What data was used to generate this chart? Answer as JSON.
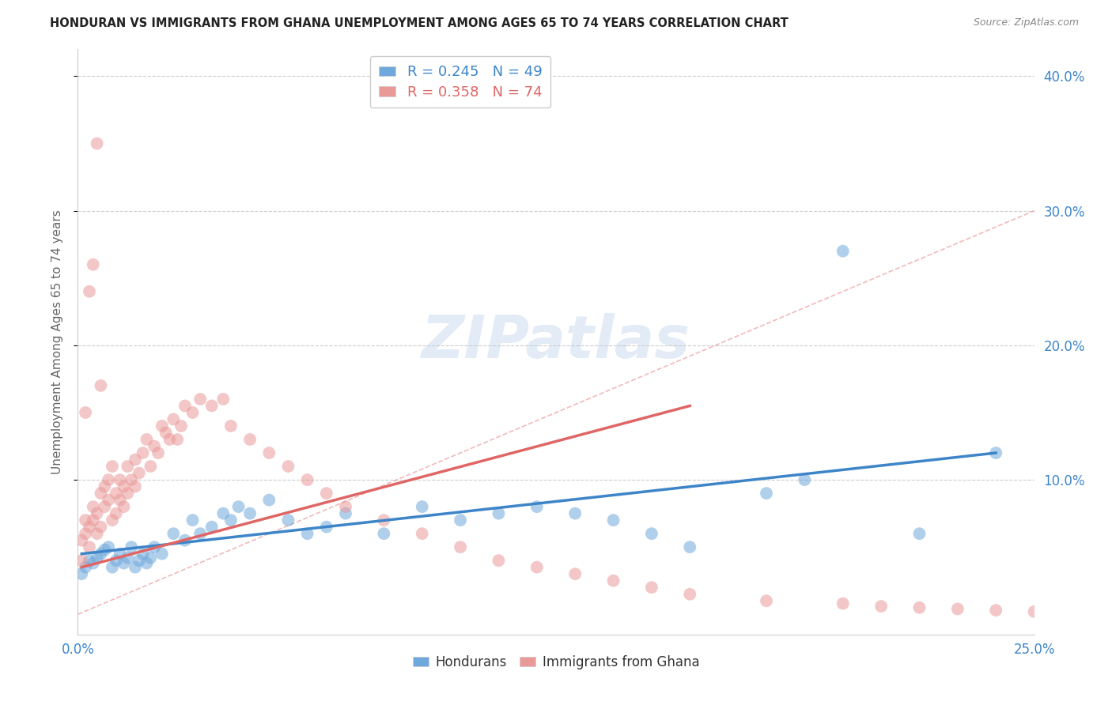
{
  "title": "HONDURAN VS IMMIGRANTS FROM GHANA UNEMPLOYMENT AMONG AGES 65 TO 74 YEARS CORRELATION CHART",
  "source": "Source: ZipAtlas.com",
  "ylabel": "Unemployment Among Ages 65 to 74 years",
  "xlim": [
    0.0,
    0.25
  ],
  "ylim": [
    -0.015,
    0.42
  ],
  "honduran_R": 0.245,
  "honduran_N": 49,
  "ghana_R": 0.358,
  "ghana_N": 74,
  "honduran_color": "#6fa8dc",
  "ghana_color": "#ea9999",
  "honduran_line_color": "#3d85c8",
  "ghana_line_color": "#e06666",
  "ref_line_color": "#e06666",
  "background_color": "#ffffff",
  "title_color": "#222222",
  "axis_label_color": "#3d85c8",
  "grid_color": "#cccccc",
  "ytick_vals": [
    0.1,
    0.2,
    0.3,
    0.4
  ],
  "honduran_scatter_x": [
    0.001,
    0.002,
    0.003,
    0.004,
    0.005,
    0.006,
    0.007,
    0.008,
    0.009,
    0.01,
    0.011,
    0.012,
    0.013,
    0.014,
    0.015,
    0.016,
    0.017,
    0.018,
    0.019,
    0.02,
    0.022,
    0.025,
    0.028,
    0.03,
    0.032,
    0.035,
    0.038,
    0.04,
    0.042,
    0.045,
    0.05,
    0.055,
    0.06,
    0.065,
    0.07,
    0.08,
    0.09,
    0.1,
    0.11,
    0.12,
    0.13,
    0.14,
    0.15,
    0.16,
    0.18,
    0.19,
    0.2,
    0.22,
    0.24
  ],
  "honduran_scatter_y": [
    0.03,
    0.035,
    0.04,
    0.038,
    0.042,
    0.045,
    0.048,
    0.05,
    0.035,
    0.04,
    0.045,
    0.038,
    0.042,
    0.05,
    0.035,
    0.04,
    0.045,
    0.038,
    0.042,
    0.05,
    0.045,
    0.06,
    0.055,
    0.07,
    0.06,
    0.065,
    0.075,
    0.07,
    0.08,
    0.075,
    0.085,
    0.07,
    0.06,
    0.065,
    0.075,
    0.06,
    0.08,
    0.07,
    0.075,
    0.08,
    0.075,
    0.07,
    0.06,
    0.05,
    0.09,
    0.1,
    0.27,
    0.06,
    0.12
  ],
  "ghana_scatter_x": [
    0.001,
    0.001,
    0.002,
    0.002,
    0.003,
    0.003,
    0.004,
    0.004,
    0.005,
    0.005,
    0.006,
    0.006,
    0.007,
    0.007,
    0.008,
    0.008,
    0.009,
    0.009,
    0.01,
    0.01,
    0.011,
    0.011,
    0.012,
    0.012,
    0.013,
    0.013,
    0.014,
    0.015,
    0.015,
    0.016,
    0.017,
    0.018,
    0.019,
    0.02,
    0.021,
    0.022,
    0.023,
    0.024,
    0.025,
    0.026,
    0.027,
    0.028,
    0.03,
    0.032,
    0.035,
    0.038,
    0.04,
    0.045,
    0.05,
    0.055,
    0.06,
    0.065,
    0.07,
    0.08,
    0.09,
    0.1,
    0.11,
    0.12,
    0.13,
    0.14,
    0.15,
    0.16,
    0.18,
    0.2,
    0.21,
    0.22,
    0.23,
    0.24,
    0.25,
    0.002,
    0.003,
    0.004,
    0.005,
    0.006
  ],
  "ghana_scatter_y": [
    0.04,
    0.055,
    0.06,
    0.07,
    0.05,
    0.065,
    0.07,
    0.08,
    0.06,
    0.075,
    0.065,
    0.09,
    0.08,
    0.095,
    0.085,
    0.1,
    0.07,
    0.11,
    0.075,
    0.09,
    0.085,
    0.1,
    0.08,
    0.095,
    0.09,
    0.11,
    0.1,
    0.095,
    0.115,
    0.105,
    0.12,
    0.13,
    0.11,
    0.125,
    0.12,
    0.14,
    0.135,
    0.13,
    0.145,
    0.13,
    0.14,
    0.155,
    0.15,
    0.16,
    0.155,
    0.16,
    0.14,
    0.13,
    0.12,
    0.11,
    0.1,
    0.09,
    0.08,
    0.07,
    0.06,
    0.05,
    0.04,
    0.035,
    0.03,
    0.025,
    0.02,
    0.015,
    0.01,
    0.008,
    0.006,
    0.005,
    0.004,
    0.003,
    0.002,
    0.15,
    0.24,
    0.26,
    0.35,
    0.17
  ],
  "honduran_line_x": [
    0.001,
    0.24
  ],
  "honduran_line_y": [
    0.045,
    0.12
  ],
  "ghana_line_x": [
    0.001,
    0.16
  ],
  "ghana_line_y": [
    0.035,
    0.155
  ],
  "ref_line_x": [
    0.0,
    0.25
  ],
  "ref_line_y": [
    0.0,
    0.3
  ]
}
